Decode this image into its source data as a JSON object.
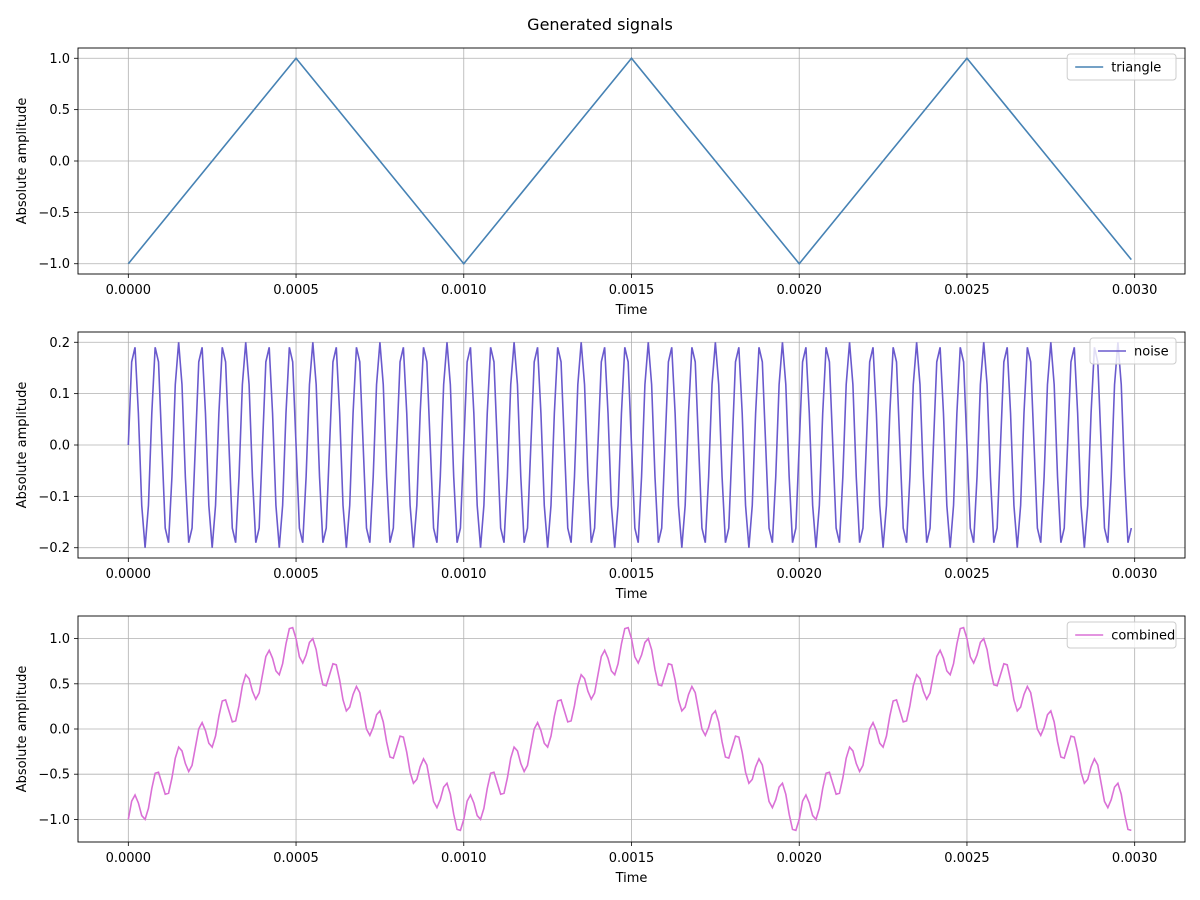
{
  "title": "Generated signals",
  "chart_data": [
    {
      "type": "line",
      "xlabel": "Time",
      "ylabel": "Absolute amplitude",
      "xlim": [
        -0.00015,
        0.00315
      ],
      "ylim": [
        -1.1,
        1.1
      ],
      "xticks": [
        0.0,
        0.0005,
        0.001,
        0.0015,
        0.002,
        0.0025,
        0.003
      ],
      "xtick_labels": [
        "0.0000",
        "0.0005",
        "0.0010",
        "0.0015",
        "0.0020",
        "0.0025",
        "0.0030"
      ],
      "yticks": [
        -1.0,
        -0.5,
        0.0,
        0.5,
        1.0
      ],
      "ytick_labels": [
        "−1.0",
        "−0.5",
        "0.0",
        "0.5",
        "1.0"
      ],
      "grid": true,
      "legend_position": "top-right",
      "series": [
        {
          "name": "triangle",
          "color": "#4682b4",
          "x": [
            0.0,
            0.00049,
            0.0005,
            0.00051,
            0.00099,
            0.001,
            0.00101,
            0.00149,
            0.0015,
            0.00151,
            0.00199,
            0.002,
            0.00201,
            0.00249,
            0.0025,
            0.00251,
            0.00299
          ],
          "y": [
            -1.0,
            0.96,
            1.0,
            0.96,
            -0.96,
            -1.0,
            -0.96,
            0.96,
            1.0,
            0.96,
            -0.96,
            -1.0,
            -0.96,
            0.96,
            1.0,
            0.96,
            -0.96
          ]
        }
      ]
    },
    {
      "type": "line",
      "xlabel": "Time",
      "ylabel": "Absolute amplitude",
      "xlim": [
        -0.00015,
        0.00315
      ],
      "ylim": [
        -0.22,
        0.22
      ],
      "xticks": [
        0.0,
        0.0005,
        0.001,
        0.0015,
        0.002,
        0.0025,
        0.003
      ],
      "xtick_labels": [
        "0.0000",
        "0.0005",
        "0.0010",
        "0.0015",
        "0.0020",
        "0.0025",
        "0.0030"
      ],
      "yticks": [
        -0.2,
        -0.1,
        0.0,
        0.1,
        0.2
      ],
      "ytick_labels": [
        "−0.2",
        "−0.1",
        "0.0",
        "0.1",
        "0.2"
      ],
      "grid": true,
      "legend_position": "top-right",
      "series": [
        {
          "name": "noise",
          "color": "#6a5acd",
          "amplitude": 0.2,
          "frequency_hz": 15000,
          "x_start": 0.0,
          "x_end": 0.00299,
          "sample_step": 1e-05
        }
      ]
    },
    {
      "type": "line",
      "xlabel": "Time",
      "ylabel": "Absolute amplitude",
      "xlim": [
        -0.00015,
        0.00315
      ],
      "ylim": [
        -1.25,
        1.25
      ],
      "xticks": [
        0.0,
        0.0005,
        0.001,
        0.0015,
        0.002,
        0.0025,
        0.003
      ],
      "xtick_labels": [
        "0.0000",
        "0.0005",
        "0.0010",
        "0.0015",
        "0.0020",
        "0.0025",
        "0.0030"
      ],
      "yticks": [
        -1.0,
        -0.5,
        0.0,
        0.5,
        1.0
      ],
      "ytick_labels": [
        "−1.0",
        "−0.5",
        "0.0",
        "0.5",
        "1.0"
      ],
      "grid": true,
      "legend_position": "top-right",
      "series": [
        {
          "name": "combined",
          "color": "#da70d6",
          "formula": "triangle + noise",
          "x_start": 0.0,
          "x_end": 0.00299,
          "sample_step": 1e-05
        }
      ]
    }
  ]
}
